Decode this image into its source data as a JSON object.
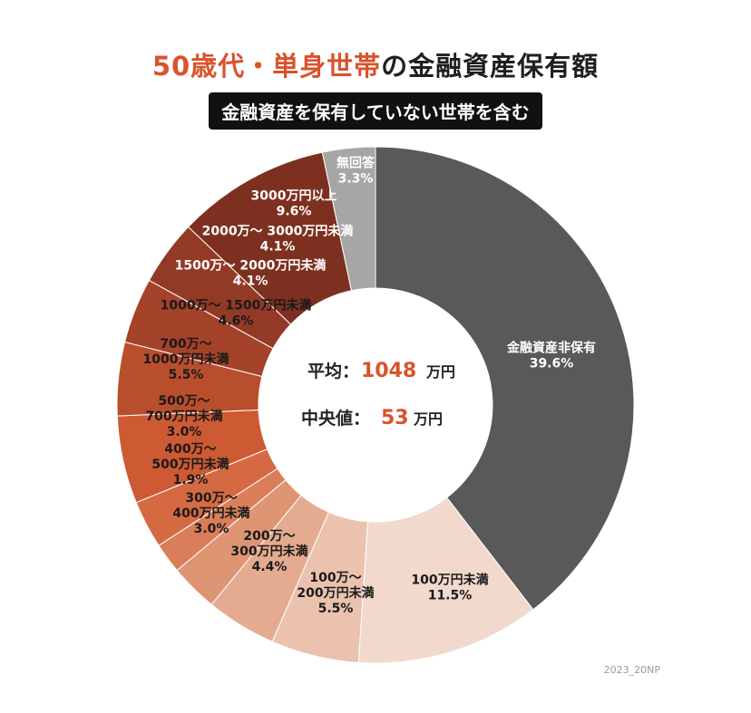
{
  "title": {
    "accent": "50歳代・単身世帯",
    "rest": "の金融資産保有額"
  },
  "subtitle": "金融資産を保有していない世帯を含む",
  "center": {
    "avg_label": "平均：",
    "avg_value": "1048",
    "avg_unit": "万円",
    "median_label": "中央値：",
    "median_value": "53",
    "median_unit": "万円",
    "value_color": "#d9532d"
  },
  "credit": "2023_20NP",
  "chart_data": {
    "type": "pie",
    "donut": true,
    "start": "top, clockwise",
    "slices": [
      {
        "lines": [
          "金融資産非保有",
          "39.6%"
        ],
        "value": 39.6,
        "color": "#595959",
        "text": "#ffffff"
      },
      {
        "lines": [
          "100万円未満",
          "11.5%"
        ],
        "value": 11.5,
        "color": "#f2d9cd",
        "text": "#1a1a1a"
      },
      {
        "lines": [
          "100万～",
          "200万円未満",
          "5.5%"
        ],
        "value": 5.5,
        "color": "#eac2ae",
        "text": "#1a1a1a"
      },
      {
        "lines": [
          "200万～",
          "300万円未満",
          "4.4%"
        ],
        "value": 4.4,
        "color": "#e4ab90",
        "text": "#1a1a1a"
      },
      {
        "lines": [
          "300万～",
          "400万円未満",
          "3.0%"
        ],
        "value": 3.0,
        "color": "#de9574",
        "text": "#1a1a1a"
      },
      {
        "lines": [
          "400万～",
          "500万円未満",
          "1.9%"
        ],
        "value": 1.9,
        "color": "#d97e58",
        "text": "#1a1a1a"
      },
      {
        "lines": [
          "500万～",
          "700万円未満",
          "3.0%"
        ],
        "value": 3.0,
        "color": "#d56a42",
        "text": "#1a1a1a"
      },
      {
        "lines": [
          "700万～",
          "1000万円未満",
          "5.5%"
        ],
        "value": 5.5,
        "color": "#cd5a33",
        "text": "#1a1a1a"
      },
      {
        "lines": [
          "1000万～ 1500万円未満",
          "4.6%"
        ],
        "value": 4.6,
        "color": "#b94e2c",
        "text": "#1a1a1a"
      },
      {
        "lines": [
          "1500万～ 2000万円未満",
          "4.1%"
        ],
        "value": 4.1,
        "color": "#a4422a",
        "text": "#ffffff"
      },
      {
        "lines": [
          "2000万～ 3000万円未満",
          "4.1%"
        ],
        "value": 4.1,
        "color": "#933a26",
        "text": "#ffffff"
      },
      {
        "lines": [
          "3000万円以上",
          "9.6%"
        ],
        "value": 9.6,
        "color": "#7e3020",
        "text": "#ffffff"
      },
      {
        "lines": [
          "無回答",
          "3.3%"
        ],
        "value": 3.3,
        "color": "#a6a6a6",
        "text": "#ffffff"
      }
    ]
  }
}
